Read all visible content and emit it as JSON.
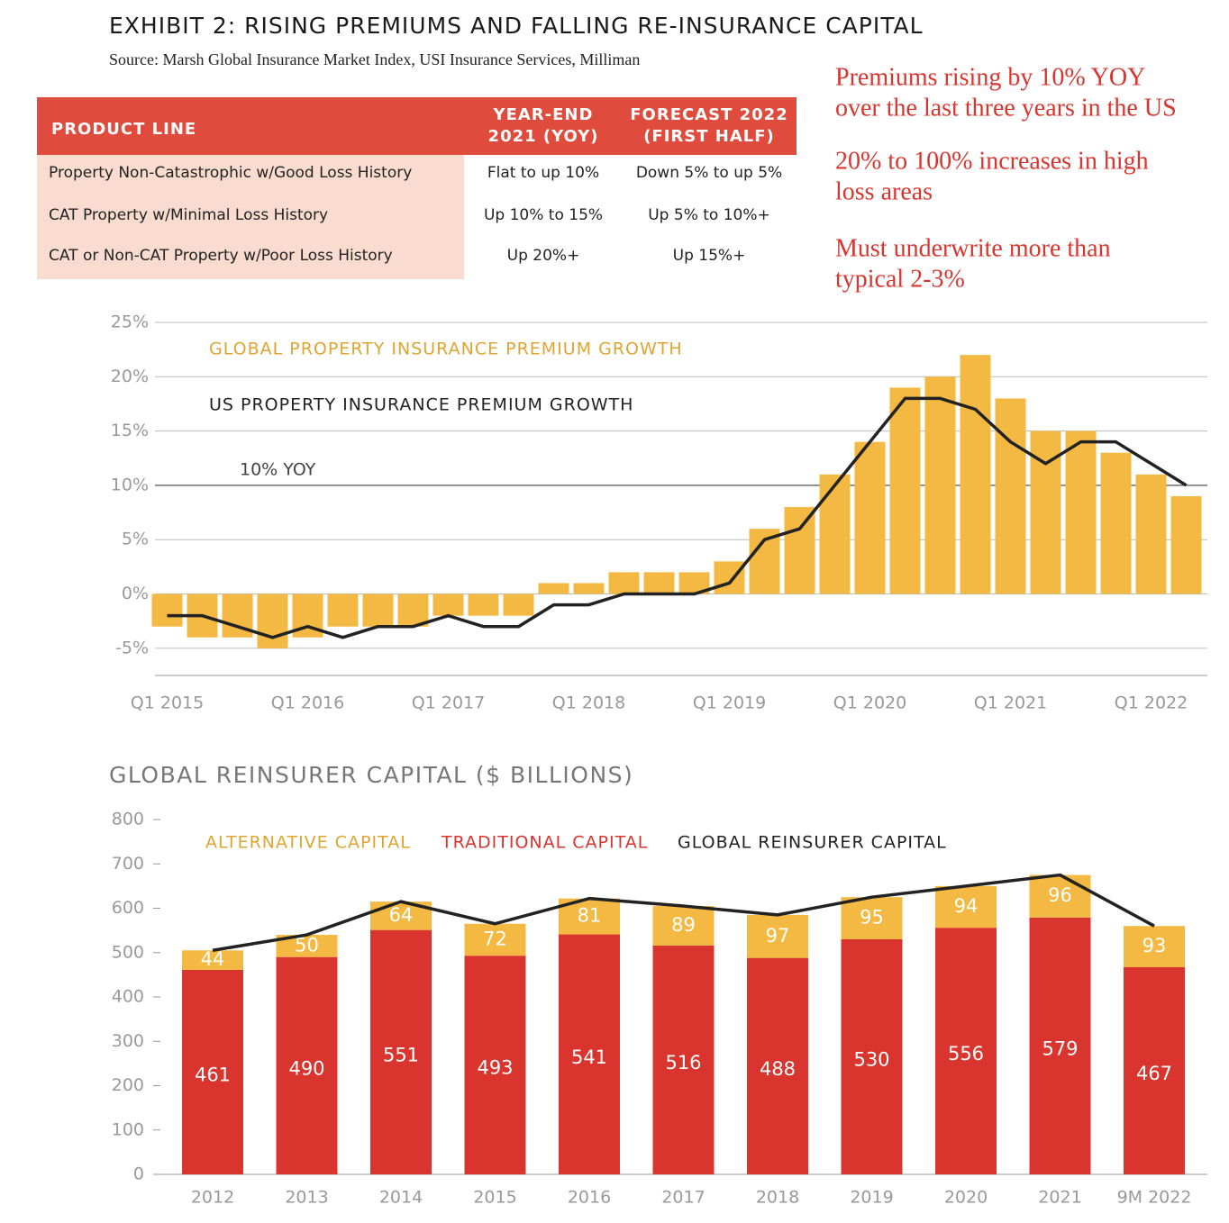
{
  "header": {
    "title": "EXHIBIT 2: RISING PREMIUMS AND FALLING RE-INSURANCE CAPITAL",
    "source": "Source: Marsh Global Insurance Market Index, USI Insurance Services, Milliman"
  },
  "table": {
    "columns": [
      [
        "PRODUCT LINE"
      ],
      [
        "YEAR-END",
        "2021 (YOY)"
      ],
      [
        "FORECAST 2022",
        "(FIRST HALF)"
      ]
    ],
    "rows": [
      [
        "Property Non-Catastrophic w/Good Loss History",
        "Flat to up 10%",
        "Down 5% to up 5%"
      ],
      [
        "CAT Property w/Minimal Loss History",
        "Up 10% to 15%",
        "Up 5% to 10%+"
      ],
      [
        "CAT or Non-CAT Property w/Poor Loss History",
        "Up 20%+",
        "Up 15%+"
      ]
    ]
  },
  "notes": [
    [
      "Premiums rising by 10% YOY",
      "over the last three years in the US"
    ],
    [
      "20% to 100% increases in high",
      "loss areas"
    ],
    [
      "Must underwrite more than",
      "typical 2-3%"
    ]
  ],
  "chart_data": [
    {
      "type": "bar",
      "categories": [
        "Q1 2015",
        null,
        null,
        null,
        "Q1 2016",
        null,
        null,
        null,
        "Q1 2017",
        null,
        null,
        null,
        "Q1 2018",
        null,
        null,
        null,
        "Q1 2019",
        null,
        null,
        null,
        "Q1 2020",
        null,
        null,
        null,
        "Q1 2021",
        null,
        null,
        null,
        "Q1 2022",
        null
      ],
      "series": [
        {
          "name": "GLOBAL PROPERTY INSURANCE PREMIUM GROWTH",
          "kind": "bar",
          "color": "#f4b942",
          "values": [
            -3,
            -4,
            -4,
            -5,
            -4,
            -3,
            -3,
            -3,
            -2,
            -2,
            -2,
            1,
            1,
            2,
            2,
            2,
            3,
            6,
            8,
            11,
            14,
            19,
            20,
            22,
            18,
            15,
            15,
            13,
            11,
            9
          ]
        },
        {
          "name": "US PROPERTY INSURANCE PREMIUM GROWTH",
          "kind": "line",
          "color": "#222222",
          "values": [
            -2,
            -2,
            -3,
            -4,
            -3,
            -4,
            -3,
            -3,
            -2,
            -3,
            -3,
            -1,
            -1,
            0,
            0,
            0,
            1,
            5,
            6,
            10,
            14,
            18,
            18,
            17,
            14,
            12,
            14,
            14,
            12,
            10
          ]
        }
      ],
      "ylim": [
        -7.5,
        25
      ],
      "yticks": [
        {
          "value": -5,
          "label": "-5%"
        },
        {
          "value": 0,
          "label": "0%"
        },
        {
          "value": 5,
          "label": "5%"
        },
        {
          "value": 10,
          "label": "10%"
        },
        {
          "value": 15,
          "label": "15%"
        },
        {
          "value": 20,
          "label": "20%"
        },
        {
          "value": 25,
          "label": "25%"
        }
      ],
      "grid": true,
      "reference_line": {
        "value": 10,
        "label": "10% YOY"
      }
    },
    {
      "type": "stacked_bar",
      "title": "GLOBAL REINSURER CAPITAL ($ BILLIONS)",
      "categories": [
        "2012",
        "2013",
        "2014",
        "2015",
        "2016",
        "2017",
        "2018",
        "2019",
        "2020",
        "2021",
        "9M 2022"
      ],
      "series": [
        {
          "name": "ALTERNATIVE CAPITAL",
          "kind": "bar",
          "color": "#f4b942",
          "values": [
            44,
            50,
            64,
            72,
            81,
            89,
            97,
            95,
            94,
            96,
            93
          ]
        },
        {
          "name": "TRADITIONAL CAPITAL",
          "kind": "bar",
          "color": "#d9352e",
          "values": [
            461,
            490,
            551,
            493,
            541,
            516,
            488,
            530,
            556,
            579,
            467
          ]
        },
        {
          "name": "GLOBAL REINSURER CAPITAL",
          "kind": "line",
          "color": "#222222",
          "values": [
            505,
            540,
            615,
            565,
            622,
            605,
            585,
            625,
            650,
            675,
            560
          ]
        }
      ],
      "ylim": [
        0,
        800
      ],
      "yticks": [
        0,
        100,
        200,
        300,
        400,
        500,
        600,
        700,
        800
      ],
      "grid": false,
      "data_labels": true
    }
  ]
}
